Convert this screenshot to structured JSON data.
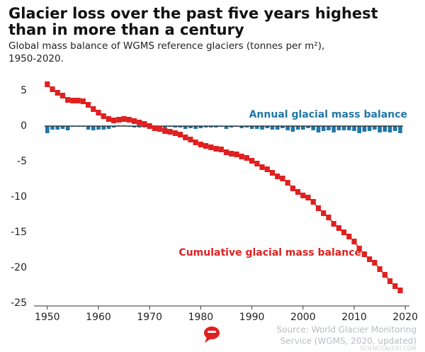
{
  "chart_data": {
    "type": "combo",
    "title": [
      "Glacier loss over the past five years highest",
      "than in more than a century"
    ],
    "subtitle": [
      "Global mass balance of WGMS reference glaciers (tonnes per m²),",
      "1950-2020."
    ],
    "x": [
      1950,
      1951,
      1952,
      1953,
      1954,
      1955,
      1956,
      1957,
      1958,
      1959,
      1960,
      1961,
      1962,
      1963,
      1964,
      1965,
      1966,
      1967,
      1968,
      1969,
      1970,
      1971,
      1972,
      1973,
      1974,
      1975,
      1976,
      1977,
      1978,
      1979,
      1980,
      1981,
      1982,
      1983,
      1984,
      1985,
      1986,
      1987,
      1988,
      1989,
      1990,
      1991,
      1992,
      1993,
      1994,
      1995,
      1996,
      1997,
      1998,
      1999,
      2000,
      2001,
      2002,
      2003,
      2004,
      2005,
      2006,
      2007,
      2008,
      2009,
      2010,
      2011,
      2012,
      2013,
      2014,
      2015,
      2016,
      2017,
      2018,
      2019
    ],
    "series": [
      {
        "name": "Annual glacial mass balance",
        "type": "bar",
        "color": "#1f77a8",
        "values": [
          -1.0,
          -0.5,
          -0.5,
          -0.4,
          -0.6,
          -0.1,
          -0.1,
          -0.1,
          -0.5,
          -0.6,
          -0.5,
          -0.5,
          -0.4,
          -0.2,
          0.1,
          0.1,
          -0.1,
          -0.2,
          -0.2,
          -0.2,
          -0.3,
          -0.3,
          -0.1,
          -0.3,
          -0.1,
          -0.2,
          -0.2,
          -0.4,
          -0.3,
          -0.4,
          -0.3,
          -0.2,
          -0.2,
          -0.2,
          -0.1,
          -0.4,
          -0.2,
          -0.1,
          -0.3,
          -0.2,
          -0.4,
          -0.4,
          -0.5,
          -0.3,
          -0.5,
          -0.5,
          -0.3,
          -0.6,
          -0.8,
          -0.5,
          -0.5,
          -0.3,
          -0.6,
          -0.9,
          -0.7,
          -0.6,
          -0.9,
          -0.6,
          -0.6,
          -0.6,
          -0.7,
          -1.0,
          -0.8,
          -0.7,
          -0.5,
          -0.9,
          -0.8,
          -0.9,
          -0.7,
          -1.0
        ]
      },
      {
        "name": "Cumulative glacial mass balance",
        "type": "line",
        "color": "#e02020",
        "values": [
          5.9,
          5.2,
          4.7,
          4.3,
          3.7,
          3.6,
          3.6,
          3.5,
          3.0,
          2.4,
          1.9,
          1.4,
          1.0,
          0.8,
          0.9,
          1.0,
          0.9,
          0.7,
          0.5,
          0.3,
          0.0,
          -0.3,
          -0.4,
          -0.7,
          -0.8,
          -1.0,
          -1.2,
          -1.6,
          -1.9,
          -2.3,
          -2.6,
          -2.8,
          -3.0,
          -3.2,
          -3.3,
          -3.7,
          -3.9,
          -4.0,
          -4.3,
          -4.5,
          -4.9,
          -5.3,
          -5.8,
          -6.1,
          -6.6,
          -7.1,
          -7.4,
          -8.0,
          -8.8,
          -9.3,
          -9.8,
          -10.1,
          -10.7,
          -11.6,
          -12.3,
          -12.9,
          -13.8,
          -14.4,
          -15.0,
          -15.6,
          -16.3,
          -17.3,
          -18.1,
          -18.8,
          -19.3,
          -20.2,
          -21.0,
          -21.9,
          -22.6,
          -23.2
        ]
      }
    ],
    "xlim": [
      1947.4,
      2020.8
    ],
    "xticks": [
      1950,
      1960,
      1970,
      1980,
      1990,
      2000,
      2010,
      2020
    ],
    "ylim": [
      -25,
      6
    ],
    "yticks": [
      5,
      0,
      -5,
      -10,
      -15,
      -20,
      -25
    ],
    "source": [
      "Source: World Glacier Monitoring",
      "Service (WGMS, 2020, updated)"
    ],
    "watermark": "SCIENCEALERT.COM"
  }
}
